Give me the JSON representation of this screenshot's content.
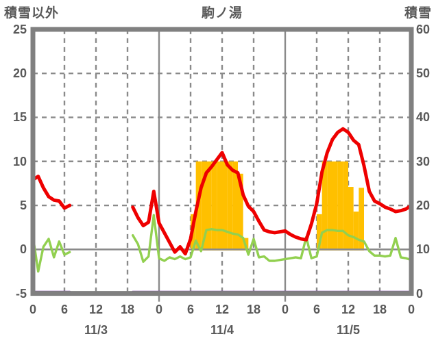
{
  "header": {
    "left_axis_title": "積雪以外",
    "chart_title": "駒ノ湯",
    "right_axis_title": "積雪"
  },
  "colors": {
    "red_line": "#ee0000",
    "green_line": "#92d050",
    "orange_bars": "#ffc000",
    "purple_line": "#7030a0",
    "frame": "#808080",
    "grid": "#8a8a8a",
    "text": "#595959",
    "background": "#ffffff"
  },
  "chart_data": {
    "type": "line",
    "title": "駒ノ湯",
    "left_axis": {
      "title": "積雪以外",
      "min": -5,
      "max": 25,
      "ticks": [
        25,
        20,
        15,
        10,
        5,
        0,
        -5
      ]
    },
    "right_axis": {
      "title": "積雪",
      "min": 0,
      "max": 60,
      "ticks": [
        60,
        50,
        40,
        30,
        20,
        10,
        0
      ]
    },
    "x_axis": {
      "unit": "hour",
      "range_hours": [
        0,
        72
      ],
      "tick_hours": [
        0,
        6,
        12,
        18,
        24,
        30,
        36,
        42,
        48,
        54,
        60,
        66,
        72
      ],
      "tick_labels": [
        "0",
        "6",
        "12",
        "18",
        "0",
        "6",
        "12",
        "18",
        "0",
        "6",
        "12",
        "18",
        "0"
      ],
      "day_labels": [
        {
          "label": "11/3",
          "hour": 12
        },
        {
          "label": "11/4",
          "hour": 36
        },
        {
          "label": "11/5",
          "hour": 60
        }
      ],
      "day_boundary_hours": [
        24,
        48
      ],
      "dashed_gridline_hours": [
        6,
        12,
        18,
        30,
        36,
        42,
        54,
        60,
        66
      ]
    },
    "horizontal_dashed_gridlines_left_axis": [
      20,
      15,
      10,
      5
    ],
    "solid_zero_line_left_axis": 0,
    "grid": true,
    "legend": "none",
    "data_gap": {
      "from_hour": 7,
      "to_hour": 19
    },
    "series": [
      {
        "name": "red-line",
        "color": "#ee0000",
        "axis": "left",
        "segments": [
          [
            [
              0,
              7.9
            ],
            [
              1,
              8.3
            ],
            [
              2,
              7.0
            ],
            [
              3,
              6.0
            ],
            [
              4,
              5.6
            ],
            [
              5,
              5.5
            ],
            [
              6,
              4.7
            ],
            [
              7,
              5.0
            ]
          ],
          [
            [
              19,
              4.8
            ],
            [
              20,
              3.6
            ],
            [
              21,
              2.7
            ],
            [
              22,
              3.1
            ],
            [
              23,
              6.6
            ],
            [
              24,
              3.0
            ],
            [
              25,
              1.9
            ],
            [
              26,
              0.8
            ],
            [
              27,
              -0.3
            ],
            [
              28,
              0.3
            ],
            [
              29,
              -0.5
            ],
            [
              30,
              1.2
            ],
            [
              31,
              4.3
            ],
            [
              32,
              7.0
            ],
            [
              33,
              8.7
            ],
            [
              34,
              9.4
            ],
            [
              35,
              10.2
            ],
            [
              36,
              11.0
            ],
            [
              37,
              9.6
            ],
            [
              38,
              9.0
            ],
            [
              39,
              8.7
            ],
            [
              40,
              6.2
            ],
            [
              41,
              4.9
            ],
            [
              42,
              4.3
            ],
            [
              43,
              3.2
            ],
            [
              44,
              2.2
            ],
            [
              45,
              2.0
            ],
            [
              46,
              1.9
            ],
            [
              47,
              2.0
            ],
            [
              48,
              2.1
            ],
            [
              49,
              1.7
            ],
            [
              50,
              1.4
            ],
            [
              51,
              1.2
            ],
            [
              52,
              1.1
            ],
            [
              53,
              2.9
            ],
            [
              54,
              5.2
            ],
            [
              55,
              8.8
            ],
            [
              56,
              11.0
            ],
            [
              57,
              12.5
            ],
            [
              58,
              13.3
            ],
            [
              59,
              13.7
            ],
            [
              60,
              13.3
            ],
            [
              61,
              12.4
            ],
            [
              62,
              11.9
            ],
            [
              63,
              9.5
            ],
            [
              64,
              6.6
            ],
            [
              65,
              5.5
            ],
            [
              66,
              5.2
            ],
            [
              67,
              4.8
            ],
            [
              68,
              4.6
            ],
            [
              69,
              4.3
            ],
            [
              70,
              4.4
            ],
            [
              71,
              4.6
            ],
            [
              72,
              5.0
            ]
          ]
        ]
      },
      {
        "name": "green-line",
        "color": "#92d050",
        "axis": "left",
        "segments": [
          [
            [
              0,
              1.5
            ],
            [
              1,
              -2.5
            ],
            [
              2,
              0.3
            ],
            [
              3,
              1.2
            ],
            [
              4,
              -0.9
            ],
            [
              5,
              0.9
            ],
            [
              6,
              -0.6
            ],
            [
              7,
              -0.3
            ]
          ],
          [
            [
              19,
              1.6
            ],
            [
              20,
              0.6
            ],
            [
              21,
              -1.4
            ],
            [
              22,
              -0.8
            ],
            [
              23,
              3.9
            ],
            [
              24,
              -1.0
            ],
            [
              25,
              -1.3
            ],
            [
              26,
              -0.9
            ],
            [
              27,
              -1.1
            ],
            [
              28,
              -0.8
            ],
            [
              29,
              -1.1
            ],
            [
              30,
              -0.9
            ],
            [
              31,
              1.0
            ],
            [
              32,
              -0.2
            ],
            [
              33,
              2.2
            ],
            [
              34,
              2.3
            ],
            [
              35,
              2.2
            ],
            [
              36,
              2.2
            ],
            [
              37,
              2.0
            ],
            [
              38,
              1.8
            ],
            [
              39,
              1.7
            ],
            [
              40,
              1.3
            ],
            [
              41,
              -0.6
            ],
            [
              42,
              1.2
            ],
            [
              43,
              -0.9
            ],
            [
              44,
              -0.8
            ],
            [
              45,
              -1.3
            ],
            [
              46,
              -1.3
            ],
            [
              47,
              -1.2
            ],
            [
              48,
              -1.1
            ],
            [
              49,
              -1.0
            ],
            [
              50,
              -0.9
            ],
            [
              51,
              -1.0
            ],
            [
              52,
              1.4
            ],
            [
              53,
              -1.0
            ],
            [
              54,
              -0.8
            ],
            [
              55,
              1.9
            ],
            [
              56,
              2.2
            ],
            [
              57,
              2.2
            ],
            [
              58,
              2.1
            ],
            [
              59,
              2.1
            ],
            [
              60,
              1.6
            ],
            [
              61,
              1.4
            ],
            [
              62,
              1.1
            ],
            [
              63,
              0.9
            ],
            [
              64,
              -0.2
            ],
            [
              65,
              -0.7
            ],
            [
              66,
              -0.7
            ],
            [
              67,
              -0.8
            ],
            [
              68,
              -0.7
            ],
            [
              69,
              1.3
            ],
            [
              70,
              -0.9
            ],
            [
              71,
              -1.0
            ],
            [
              72,
              -1.2
            ]
          ]
        ]
      },
      {
        "name": "purple-line",
        "color": "#7030a0",
        "axis": "right",
        "segments": [
          [
            [
              0,
              0
            ],
            [
              7,
              0
            ]
          ],
          [
            [
              19,
              0
            ],
            [
              72,
              0
            ]
          ]
        ]
      }
    ],
    "bars": {
      "name": "orange-bars",
      "color": "#ffc000",
      "axis": "left",
      "baseline": 0,
      "bar_width_hours": 1,
      "values": [
        [
          30,
          4.0
        ],
        [
          31,
          10
        ],
        [
          32,
          10
        ],
        [
          33,
          10
        ],
        [
          34,
          10
        ],
        [
          35,
          10
        ],
        [
          36,
          10
        ],
        [
          37,
          10
        ],
        [
          38,
          10
        ],
        [
          39,
          8.6
        ],
        [
          40,
          1.3
        ],
        [
          54,
          4.0
        ],
        [
          55,
          10
        ],
        [
          56,
          10
        ],
        [
          57,
          10
        ],
        [
          58,
          10
        ],
        [
          59,
          10
        ],
        [
          60,
          7.1
        ],
        [
          61,
          4.3
        ],
        [
          62,
          7.0
        ]
      ]
    }
  }
}
